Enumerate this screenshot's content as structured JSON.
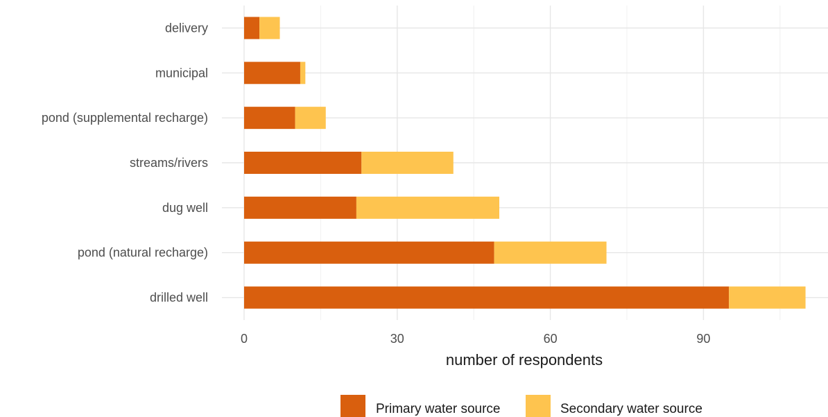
{
  "chart_data": {
    "type": "bar",
    "orientation": "horizontal",
    "stacked": true,
    "title": "",
    "xlabel": "number of respondents",
    "ylabel": "",
    "categories": [
      "delivery",
      "municipal",
      "pond (supplemental recharge)",
      "streams/rivers",
      "dug well",
      "pond (natural recharge)",
      "drilled well"
    ],
    "series": [
      {
        "name": "Primary water source",
        "color": "#d95f0e",
        "values": [
          3,
          11,
          10,
          23,
          22,
          49,
          95
        ]
      },
      {
        "name": "Secondary water source",
        "color": "#fec44f",
        "values": [
          4,
          1,
          6,
          18,
          28,
          22,
          15
        ]
      }
    ],
    "xlim": [
      0,
      110
    ],
    "xticks": [
      0,
      30,
      60,
      90
    ],
    "grid": true,
    "legend_position": "bottom"
  }
}
